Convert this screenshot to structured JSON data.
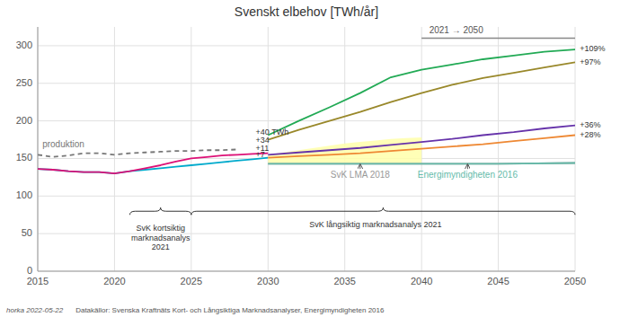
{
  "chart_data": {
    "type": "line",
    "title": "Svenskt elbehov [TWh/år]",
    "xlim": [
      2015,
      2050
    ],
    "ylim": [
      0,
      325
    ],
    "xticks": [
      2015,
      2020,
      2025,
      2030,
      2035,
      2040,
      2045,
      2050
    ],
    "yticks": [
      0,
      50,
      100,
      150,
      200,
      250,
      300
    ],
    "grid": true,
    "series": [
      {
        "name": "produktion",
        "color": "#777777",
        "line_style": "dashed",
        "x": [
          2015,
          2016,
          2017,
          2018,
          2019,
          2020,
          2021,
          2022,
          2023,
          2024,
          2025,
          2026,
          2027,
          2028
        ],
        "values": [
          155,
          152,
          154,
          157,
          157,
          155,
          157,
          158,
          159,
          160,
          160,
          161,
          161,
          162
        ],
        "label_at": {
          "x": 2015.3,
          "y": 161
        }
      },
      {
        "color": "#00aacc",
        "line_style": "solid",
        "x": [
          2015,
          2016,
          2017,
          2018,
          2019,
          2020,
          2021,
          2022,
          2023,
          2024,
          2025,
          2026,
          2027,
          2028,
          2029,
          2030
        ],
        "values": [
          136,
          135,
          133,
          132,
          132,
          130,
          133,
          135,
          137,
          139,
          141,
          143,
          145,
          147,
          149,
          151
        ]
      },
      {
        "color": "#dd1177",
        "line_style": "solid",
        "x": [
          2015,
          2016,
          2017,
          2018,
          2019,
          2020,
          2021,
          2022,
          2023,
          2024,
          2025,
          2026,
          2027,
          2028,
          2029,
          2030
        ],
        "values": [
          136,
          135,
          133,
          132,
          132,
          130,
          133,
          137,
          141,
          146,
          150,
          152,
          154,
          155,
          156,
          157
        ]
      },
      {
        "name": "SvK LMA 2018",
        "color": "#999999",
        "line_style": "solid",
        "x": [
          2030,
          2035,
          2040,
          2045,
          2050
        ],
        "values": [
          143,
          143,
          143,
          143,
          144
        ],
        "label_at": {
          "x": 2036,
          "y": 124
        },
        "arrow_to": {
          "x": 2036,
          "y": 143
        }
      },
      {
        "name": "Energimyndigheten 2016",
        "color": "#66bbaa",
        "line_style": "solid",
        "x": [
          2030,
          2035,
          2040,
          2045,
          2050
        ],
        "values": [
          143,
          143,
          143,
          143,
          144
        ],
        "label_at": {
          "x": 2043,
          "y": 124
        },
        "arrow_to": {
          "x": 2043,
          "y": 143
        }
      },
      {
        "color": "#ee8833",
        "line_style": "solid",
        "x": [
          2030,
          2032,
          2034,
          2036,
          2038,
          2040,
          2042,
          2044,
          2046,
          2048,
          2050
        ],
        "values": [
          151,
          153,
          155,
          157,
          160,
          163,
          166,
          169,
          173,
          177,
          181
        ]
      },
      {
        "color": "#6633aa",
        "line_style": "solid",
        "x": [
          2030,
          2032,
          2034,
          2036,
          2038,
          2040,
          2042,
          2044,
          2046,
          2048,
          2050
        ],
        "values": [
          155,
          158,
          161,
          164,
          168,
          172,
          176,
          181,
          185,
          190,
          194
        ]
      },
      {
        "color": "#22aa55",
        "line_style": "solid",
        "x": [
          2030,
          2032,
          2034,
          2036,
          2038,
          2040,
          2042,
          2044,
          2046,
          2048,
          2050
        ],
        "values": [
          181,
          200,
          218,
          237,
          258,
          268,
          275,
          282,
          287,
          292,
          295
        ]
      },
      {
        "color": "#99882a",
        "line_style": "solid",
        "x": [
          2030,
          2032,
          2034,
          2036,
          2038,
          2040,
          2042,
          2044,
          2046,
          2048,
          2050
        ],
        "values": [
          175,
          188,
          200,
          212,
          225,
          237,
          248,
          257,
          264,
          271,
          278
        ]
      }
    ],
    "bands": [
      {
        "color": "#ffffaa",
        "x": [
          2030,
          2031,
          2032,
          2033,
          2034,
          2035,
          2036,
          2037,
          2038,
          2039,
          2040
        ],
        "low": [
          143,
          143,
          143,
          143,
          143,
          143,
          143,
          143,
          143,
          143,
          143
        ],
        "high": [
          155,
          158,
          161,
          164,
          167,
          170,
          172,
          174,
          176,
          177,
          178
        ]
      }
    ],
    "annotations": [
      {
        "text": "+40 TWh",
        "x": 2029.2,
        "y": 184
      },
      {
        "text": "+34",
        "x": 2029.2,
        "y": 174
      },
      {
        "text": "+11",
        "x": 2029.2,
        "y": 163
      },
      {
        "text": "+7",
        "x": 2029.2,
        "y": 155
      },
      {
        "text": "+109%",
        "x": 2050.3,
        "y": 295
      },
      {
        "text": "+97%",
        "x": 2050.3,
        "y": 278
      },
      {
        "text": "+36%",
        "x": 2050.3,
        "y": 194
      },
      {
        "text": "+28%",
        "x": 2050.3,
        "y": 181
      },
      {
        "text": "2021 → 2050",
        "x": 2040.5,
        "y": 314,
        "line": {
          "x": [
            2040,
            2050
          ],
          "y": [
            310,
            310
          ]
        }
      }
    ],
    "braces": [
      {
        "x1": 2021,
        "x2": 2025,
        "y": 75,
        "label": "SvK kortsiktig\nmarknadsanalys\n2021",
        "label_x": 2023,
        "label_y": 63
      },
      {
        "x1": 2025,
        "x2": 2050,
        "y": 75,
        "label": "SvK långsiktig marknadsanalys 2021",
        "label_x": 2037,
        "label_y": 68
      }
    ],
    "footer": [
      "horka 2022-05-22",
      "Datakällor: Svenska Kraftnäts Kort- och Långsiktiga Marknadsanalyser, Energimyndigheten 2016"
    ]
  }
}
